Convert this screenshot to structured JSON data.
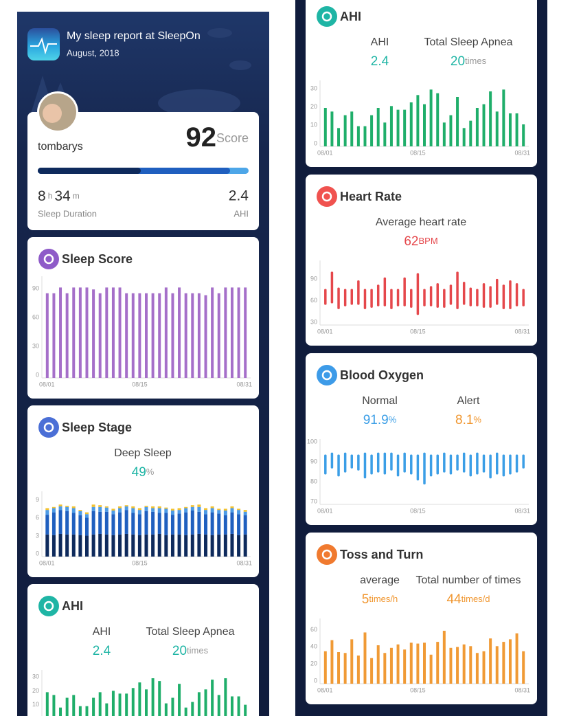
{
  "header": {
    "title": "My sleep report at SleepOn",
    "subtitle": "August, 2018"
  },
  "summary": {
    "username": "tombarys",
    "score": 92,
    "score_unit": "Score",
    "hours": 8,
    "hours_unit": "h",
    "minutes": 34,
    "minutes_unit": "m",
    "duration_label": "Sleep Duration",
    "ahi": 2.4,
    "ahi_label": "AHI"
  },
  "chart_data": [
    {
      "type": "bar",
      "title": "Sleep Score",
      "icon_color": "#8e5bc8",
      "color": "#a56fc9",
      "categories": [
        "08/01",
        null,
        null,
        null,
        null,
        null,
        null,
        null,
        null,
        null,
        null,
        null,
        null,
        null,
        "08/15",
        null,
        null,
        null,
        null,
        null,
        null,
        null,
        null,
        null,
        null,
        null,
        null,
        null,
        null,
        null,
        "08/31"
      ],
      "values": [
        88,
        88,
        94,
        88,
        94,
        94,
        94,
        92,
        88,
        94,
        94,
        94,
        88,
        88,
        88,
        88,
        88,
        88,
        94,
        88,
        94,
        88,
        88,
        88,
        86,
        94,
        88,
        94,
        94,
        94,
        94
      ],
      "ylim": [
        0,
        100
      ],
      "yticks": [
        0,
        30,
        60,
        90
      ]
    },
    {
      "type": "stacked",
      "title": "Sleep Stage",
      "icon_color": "#4b6fd6",
      "metrics": [
        {
          "label": "Deep Sleep",
          "value": 49,
          "unit": "%",
          "color": "#1fb5a5"
        }
      ],
      "categories": [
        "08/01",
        null,
        null,
        null,
        null,
        null,
        null,
        null,
        null,
        null,
        null,
        null,
        null,
        null,
        "08/15",
        null,
        null,
        null,
        null,
        null,
        null,
        null,
        null,
        null,
        null,
        null,
        null,
        null,
        null,
        null,
        "08/31"
      ],
      "series": [
        {
          "color": "#0e2a5c",
          "values": [
            3.7,
            3.6,
            3.8,
            3.7,
            3.7,
            3.6,
            3.5,
            3.7,
            3.8,
            3.7,
            3.6,
            3.7,
            3.8,
            3.7,
            3.6,
            3.7,
            3.7,
            3.8,
            3.6,
            3.7,
            3.7,
            3.6,
            3.7,
            3.8,
            3.7,
            3.6,
            3.7,
            3.7,
            3.8,
            3.6,
            3.7
          ]
        },
        {
          "color": "#1f5fbf",
          "values": [
            3.3,
            3.8,
            4.0,
            3.9,
            3.6,
            3.3,
            3.0,
            3.9,
            3.7,
            3.8,
            3.5,
            3.7,
            4.0,
            3.6,
            3.5,
            3.9,
            3.8,
            3.5,
            3.7,
            3.3,
            3.5,
            3.8,
            4.0,
            3.7,
            3.4,
            3.8,
            3.5,
            3.2,
            3.6,
            3.5,
            3.2
          ]
        },
        {
          "color": "#4d9be6",
          "values": [
            0.8,
            0.7,
            0.6,
            0.7,
            0.8,
            0.7,
            0.6,
            0.7,
            0.8,
            0.7,
            0.6,
            0.7,
            0.6,
            0.8,
            0.7,
            0.7,
            0.6,
            0.8,
            0.7,
            0.7,
            0.6,
            0.7,
            0.6,
            0.8,
            0.7,
            0.7,
            0.6,
            0.8,
            0.7,
            0.7,
            0.6
          ]
        },
        {
          "color": "#f2c230",
          "values": [
            0.3,
            0.2,
            0.3,
            0.2,
            0.3,
            0.2,
            0.3,
            0.4,
            0.3,
            0.2,
            0.3,
            0.3,
            0.2,
            0.3,
            0.3,
            0.2,
            0.3,
            0.3,
            0.2,
            0.3,
            0.3,
            0.2,
            0.3,
            0.4,
            0.3,
            0.3,
            0.2,
            0.3,
            0.3,
            0.2,
            0.3
          ]
        }
      ],
      "ylim": [
        0,
        10
      ],
      "yticks": [
        0,
        3,
        6,
        9
      ]
    },
    {
      "type": "bar",
      "title": "AHI",
      "icon_color": "#1fb5a5",
      "color": "#1fae6a",
      "metrics": [
        {
          "label": "AHI",
          "value": 2.4,
          "color": "#1fb5a5"
        },
        {
          "label": "Total Sleep Apnea",
          "value": 20,
          "unit": "times",
          "color": "#1fb5a5"
        }
      ],
      "categories": [
        "08/01",
        null,
        null,
        null,
        null,
        null,
        null,
        null,
        null,
        null,
        null,
        null,
        null,
        null,
        "08/15",
        null,
        null,
        null,
        null,
        null,
        null,
        null,
        null,
        null,
        null,
        null,
        null,
        null,
        null,
        null,
        "08/31"
      ],
      "values": [
        21,
        19,
        10,
        17,
        19,
        11,
        11,
        17,
        21,
        13,
        22,
        20,
        20,
        24,
        28,
        23,
        31,
        29,
        13,
        17,
        27,
        10,
        14,
        21,
        23,
        30,
        19,
        31,
        18,
        18,
        12
      ],
      "ylim": [
        0,
        33
      ],
      "yticks": [
        0,
        10,
        20,
        30
      ]
    },
    {
      "type": "range",
      "title": "Heart Rate",
      "icon_color": "#f0524f",
      "color": "#e5474b",
      "metrics": [
        {
          "label": "Average heart rate",
          "value": 62,
          "unit": "BPM",
          "color": "#e5474b"
        }
      ],
      "categories": [
        "08/01",
        null,
        null,
        null,
        null,
        null,
        null,
        null,
        null,
        null,
        null,
        null,
        null,
        null,
        "08/15",
        null,
        null,
        null,
        null,
        null,
        null,
        null,
        null,
        null,
        null,
        null,
        null,
        null,
        null,
        null,
        "08/31"
      ],
      "low": [
        58,
        60,
        52,
        56,
        58,
        58,
        52,
        54,
        56,
        56,
        52,
        56,
        56,
        54,
        44,
        56,
        56,
        54,
        54,
        58,
        52,
        58,
        56,
        56,
        54,
        54,
        58,
        52,
        52,
        56,
        56
      ],
      "high": [
        80,
        104,
        82,
        80,
        80,
        92,
        80,
        80,
        86,
        96,
        80,
        80,
        96,
        80,
        102,
        80,
        84,
        88,
        80,
        86,
        104,
        90,
        82,
        80,
        88,
        84,
        94,
        86,
        92,
        88,
        80
      ],
      "ylim": [
        30,
        112
      ],
      "yticks": [
        30,
        60,
        90
      ]
    },
    {
      "type": "range",
      "title": "Blood Oxygen",
      "icon_color": "#3d9be8",
      "color": "#3b9ee6",
      "metrics": [
        {
          "label": "Normal",
          "value": 91.9,
          "unit": "%",
          "color": "#3b9ee6"
        },
        {
          "label": "Alert",
          "value": 8.1,
          "unit": "%",
          "color": "#f0962f"
        }
      ],
      "categories": [
        "08/01",
        null,
        null,
        null,
        null,
        null,
        null,
        null,
        null,
        null,
        null,
        null,
        null,
        null,
        "08/15",
        null,
        null,
        null,
        null,
        null,
        null,
        null,
        null,
        null,
        null,
        null,
        null,
        null,
        null,
        null,
        "08/31"
      ],
      "low": [
        85,
        88,
        84,
        86,
        88,
        87,
        83,
        85,
        86,
        85,
        87,
        84,
        86,
        85,
        82,
        80,
        84,
        85,
        86,
        85,
        87,
        86,
        84,
        85,
        86,
        83,
        85,
        84,
        85,
        86,
        88
      ],
      "high": [
        95,
        96,
        95,
        96,
        95,
        95,
        96,
        95,
        96,
        96,
        96,
        95,
        96,
        95,
        95,
        96,
        95,
        95,
        96,
        95,
        95,
        96,
        95,
        96,
        95,
        95,
        96,
        95,
        95,
        95,
        95
      ],
      "ylim": [
        70,
        100
      ],
      "yticks": [
        70,
        80,
        90,
        100
      ]
    },
    {
      "type": "bar",
      "title": "Toss and Turn",
      "icon_color": "#f07a2f",
      "color": "#f09a35",
      "metrics": [
        {
          "label": "average",
          "value": 5,
          "unit": "times/h",
          "color": "#f0962f"
        },
        {
          "label": "Total number of times",
          "value": 44,
          "unit": "times/d",
          "color": "#f0962f"
        }
      ],
      "categories": [
        "08/01",
        null,
        null,
        null,
        null,
        null,
        null,
        null,
        null,
        null,
        null,
        null,
        null,
        null,
        "08/15",
        null,
        null,
        null,
        null,
        null,
        null,
        null,
        null,
        null,
        null,
        null,
        null,
        null,
        null,
        null,
        "08/31"
      ],
      "values": [
        38,
        51,
        37,
        36,
        52,
        33,
        60,
        30,
        45,
        36,
        42,
        46,
        40,
        48,
        47,
        48,
        34,
        49,
        62,
        42,
        43,
        46,
        44,
        36,
        38,
        53,
        44,
        49,
        52,
        59,
        38
      ],
      "ylim": [
        0,
        70
      ],
      "yticks": [
        0,
        20,
        40,
        60
      ]
    }
  ]
}
